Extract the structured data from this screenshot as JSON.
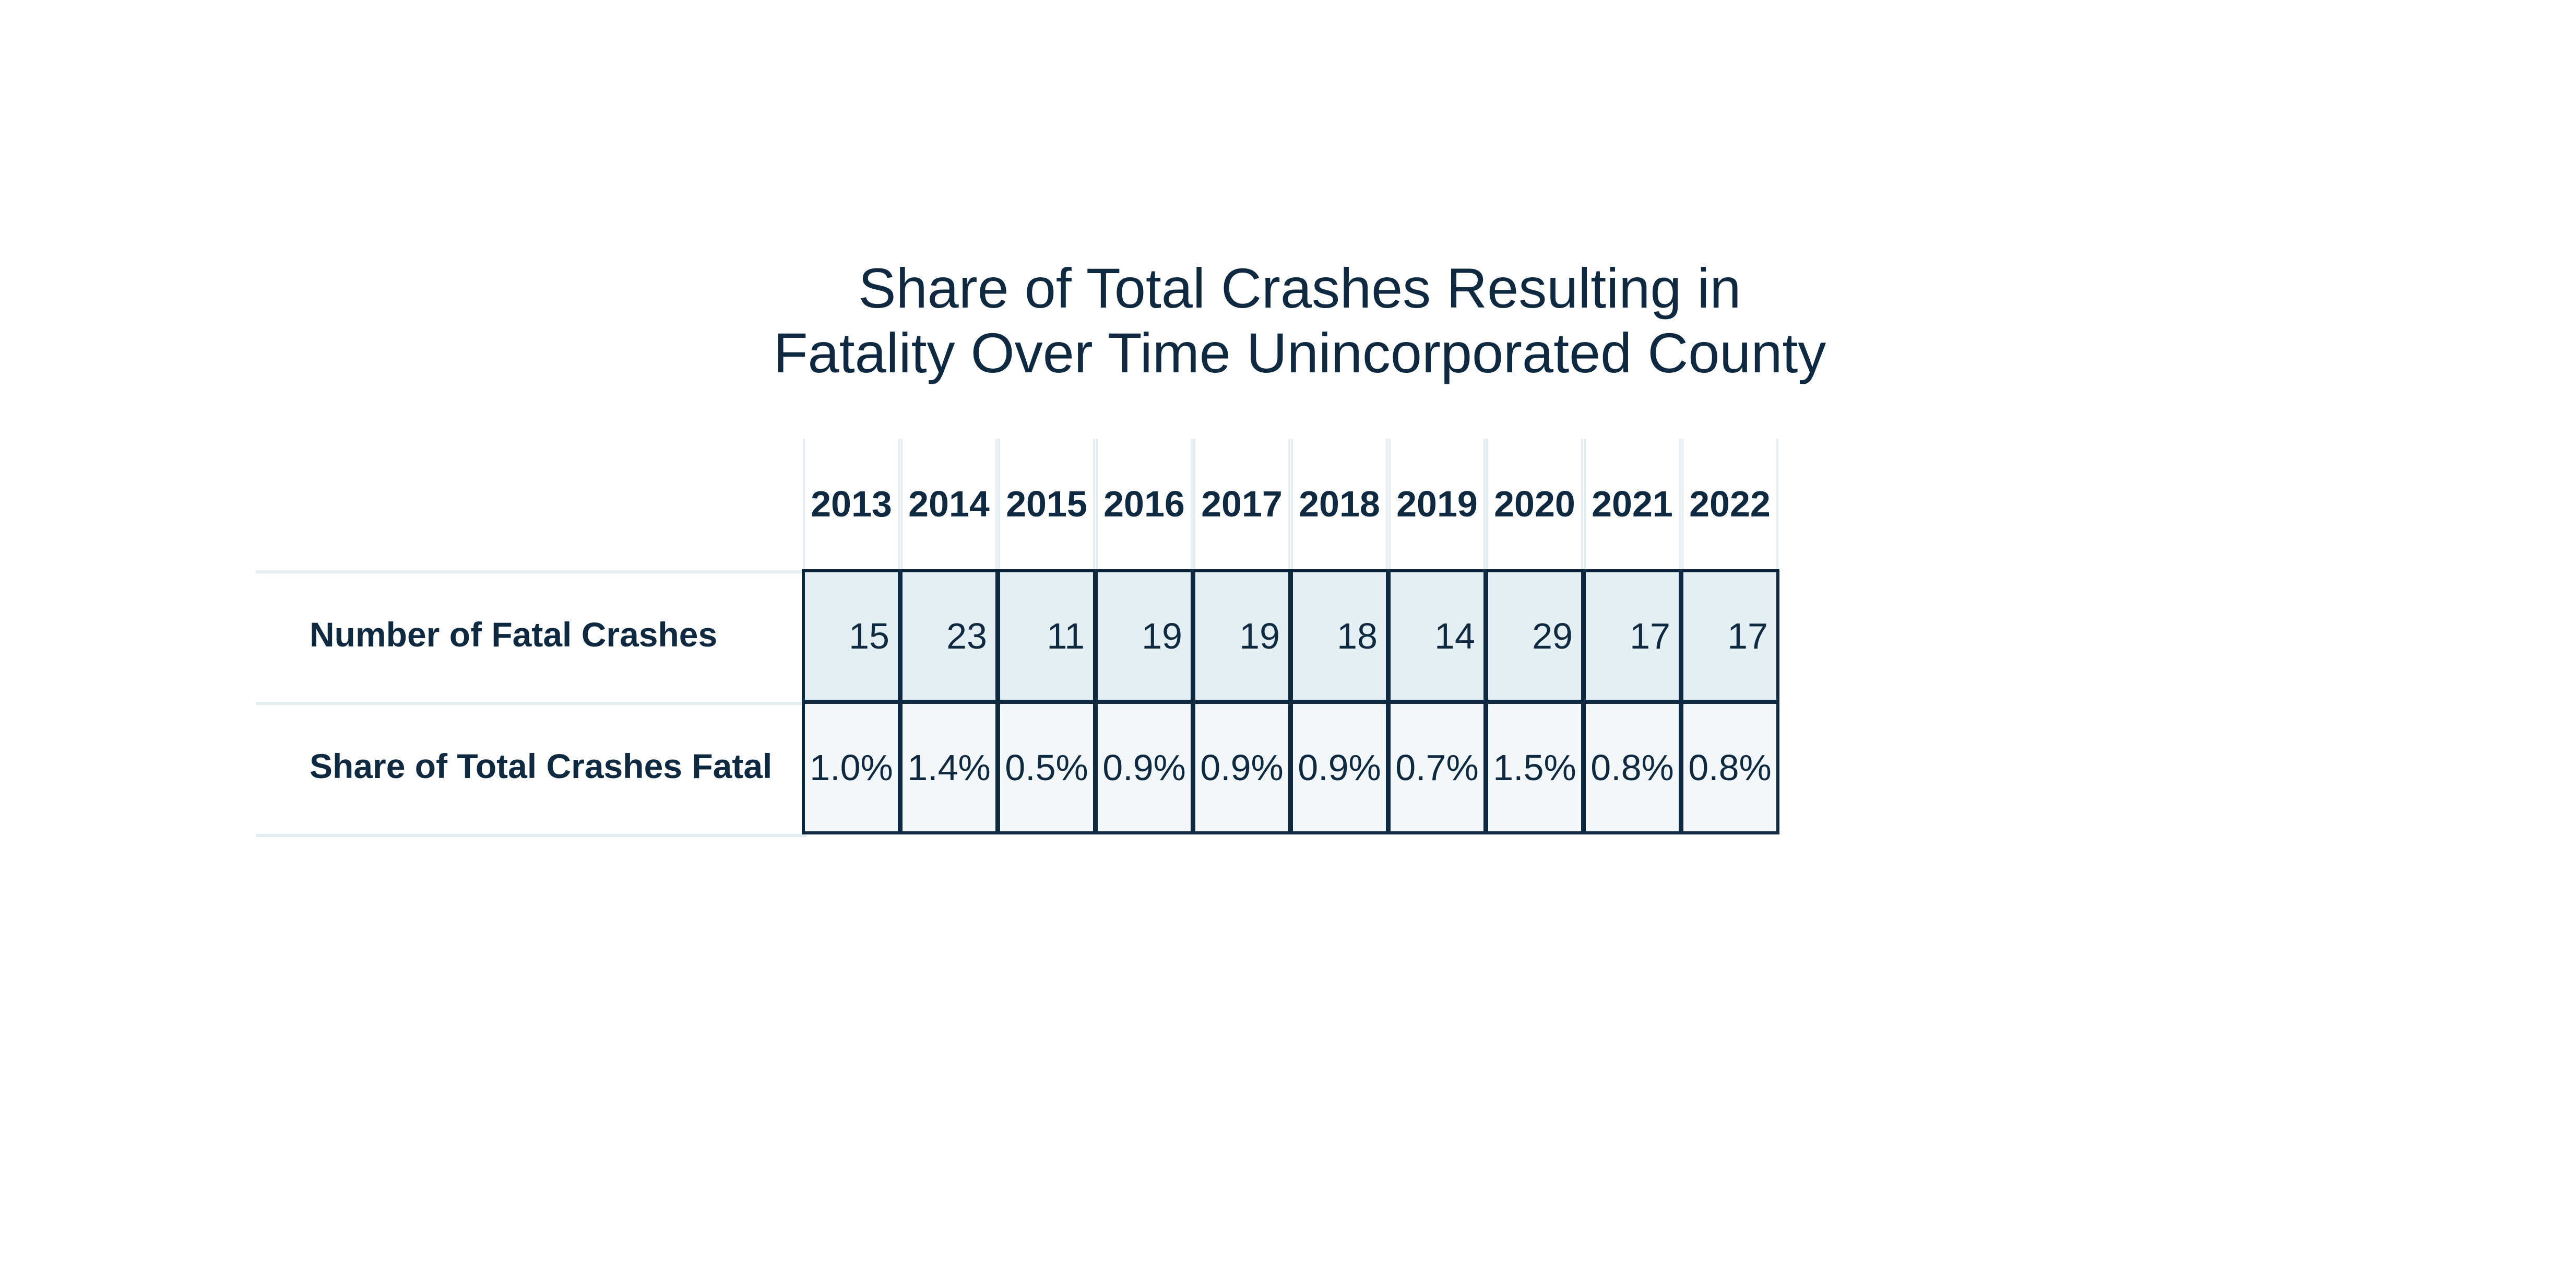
{
  "chart_data": {
    "type": "table",
    "title": [
      "Share of Total Crashes Resulting in",
      "Fatality Over Time Unincorporated County"
    ],
    "columns": [
      "2013",
      "2014",
      "2015",
      "2016",
      "2017",
      "2018",
      "2019",
      "2020",
      "2021",
      "2022"
    ],
    "rows": [
      {
        "label": "Number of Fatal Crashes",
        "values": [
          "15",
          "23",
          "11",
          "19",
          "19",
          "18",
          "14",
          "29",
          "17",
          "17"
        ]
      },
      {
        "label": "Share of Total Crashes Fatal",
        "values": [
          "1.0%",
          "1.4%",
          "0.5%",
          "0.9%",
          "0.9%",
          "0.9%",
          "0.7%",
          "1.5%",
          "0.8%",
          "0.8%"
        ]
      }
    ],
    "colors": {
      "text": "#0f2940",
      "cell_border": "#0f2940",
      "count_fill": "#e3eff3",
      "share_fill": "#f2f8f9",
      "rule_line": "#e3eef2"
    }
  }
}
